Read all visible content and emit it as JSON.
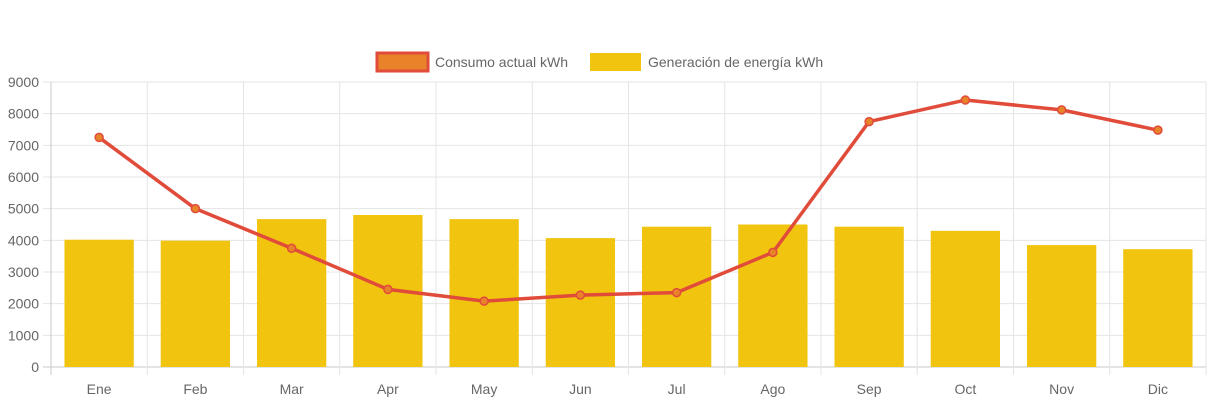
{
  "chart_data": {
    "type": "bar",
    "categories": [
      "Ene",
      "Feb",
      "Mar",
      "Apr",
      "May",
      "Jun",
      "Jul",
      "Ago",
      "Sep",
      "Oct",
      "Nov",
      "Dic"
    ],
    "series": [
      {
        "name": "Consumo actual kWh",
        "type": "line",
        "color": "#e04b3a",
        "point_color": "#e8832a",
        "values": [
          7250,
          5000,
          3750,
          2450,
          2080,
          2270,
          2350,
          3620,
          7750,
          8430,
          8120,
          7480
        ]
      },
      {
        "name": "Generación de energía kWh",
        "type": "bar",
        "color": "#f1c40f",
        "values": [
          4020,
          3990,
          4670,
          4800,
          4670,
          4070,
          4430,
          4500,
          4430,
          4300,
          3850,
          3720
        ]
      }
    ],
    "ylim": [
      0,
      9000
    ],
    "yticks": [
      0,
      1000,
      2000,
      3000,
      4000,
      5000,
      6000,
      7000,
      8000,
      9000
    ],
    "grid": true,
    "legend_position": "top-center"
  }
}
